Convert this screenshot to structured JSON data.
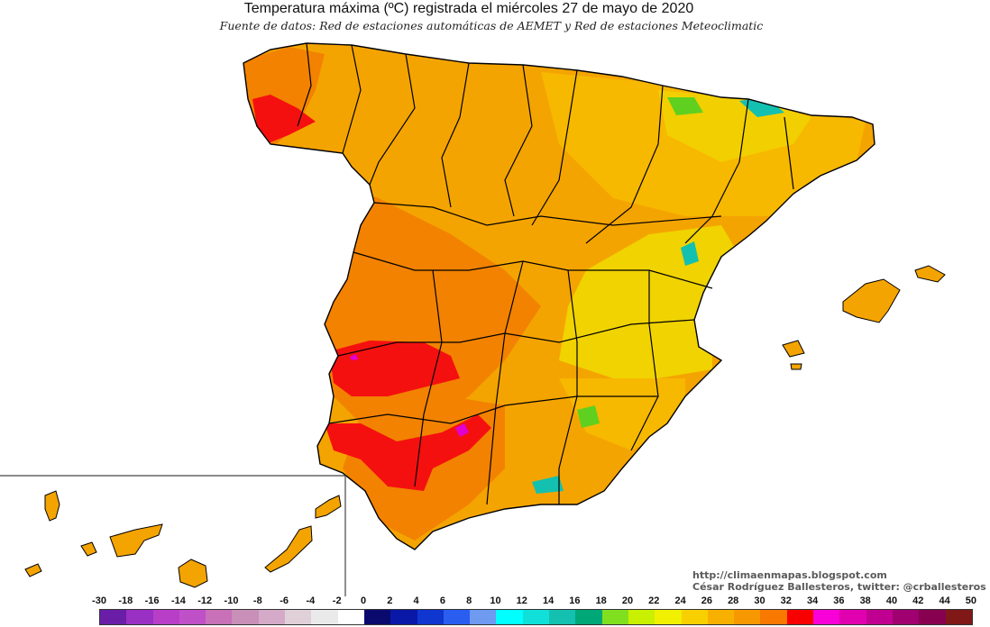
{
  "title": "Temperatura máxima (ºC) registrada el miércoles 27 de mayo de 2020",
  "subtitle": "Fuente de datos: Red de estaciones automáticas de AEMET y Red de estaciones Meteoclimatic",
  "credits": {
    "url": "http://climaenmapas.blogspot.com",
    "author": "César Rodríguez Ballesteros, twitter: @crballesteros"
  },
  "legend": {
    "labels": [
      "-30",
      "-18",
      "-16",
      "-14",
      "-12",
      "-10",
      "-8",
      "-6",
      "-4",
      "-2",
      "0",
      "2",
      "4",
      "6",
      "8",
      "10",
      "12",
      "14",
      "16",
      "18",
      "20",
      "22",
      "24",
      "26",
      "28",
      "30",
      "32",
      "34",
      "36",
      "38",
      "40",
      "42",
      "44",
      "50"
    ],
    "colors": [
      "#6a1ea8",
      "#9a2fc4",
      "#b83ec8",
      "#c050c8",
      "#c870b8",
      "#c890b8",
      "#d4aac8",
      "#e0d0d8",
      "#eaeaea",
      "#ffffff",
      "#0a0a6e",
      "#0a18a8",
      "#1036d0",
      "#2a5ef0",
      "#6e9af0",
      "#00ffff",
      "#10e0d8",
      "#14c0b0",
      "#00a878",
      "#80e020",
      "#c8f000",
      "#f0f000",
      "#f8d000",
      "#f8b000",
      "#f89800",
      "#f87800",
      "#f80000",
      "#f800d8",
      "#e000b0",
      "#c00090",
      "#a00070",
      "#880050",
      "#801818"
    ]
  },
  "map_colors": {
    "base": "#f4a400",
    "yellow": "#f0d800",
    "light_orange": "#f7b800",
    "orange": "#f28200",
    "red": "#f51010",
    "magenta": "#e000d0",
    "cyan": "#14c0b0",
    "green": "#60d020",
    "border": "#000000"
  }
}
